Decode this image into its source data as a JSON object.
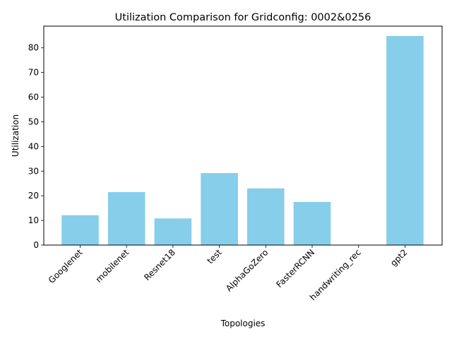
{
  "chart_data": {
    "type": "bar",
    "title": "Utilization Comparison for Gridconfig: 0002&0256",
    "xlabel": "Topologies",
    "ylabel": "Utilization",
    "categories": [
      "Googlenet",
      "mobilenet",
      "Resnet18",
      "test",
      "AlphaGoZero",
      "FasterRCNN",
      "handwriting_rec",
      "gpt2"
    ],
    "values": [
      12.1,
      21.5,
      10.8,
      29.2,
      23.0,
      17.5,
      0,
      84.8
    ],
    "ylim": [
      0,
      88.8
    ],
    "yticks": [
      0,
      10,
      20,
      30,
      40,
      50,
      60,
      70,
      80
    ],
    "bar_color": "#87ceeb",
    "grid": false,
    "legend": "none"
  }
}
